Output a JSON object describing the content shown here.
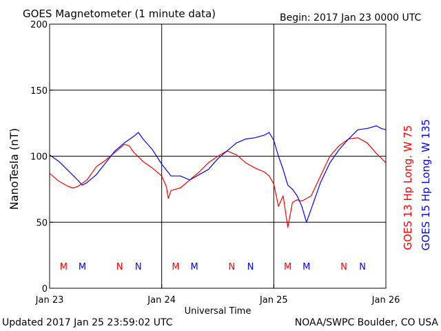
{
  "chart_data": {
    "type": "line",
    "title": "GOES Magnetometer (1 minute data)",
    "begin_label": "Begin:  2017 Jan 23 0000 UTC",
    "xlabel": "Universal Time",
    "ylabel": "NanoTesla (nT)",
    "xlim": [
      0,
      72
    ],
    "x_unit": "hours since Jan 23 0000 UTC",
    "ylim": [
      0,
      200
    ],
    "y_ticks": [
      0,
      50,
      100,
      150,
      200
    ],
    "x_ticks": [
      {
        "x": 0,
        "label": "Jan 23"
      },
      {
        "x": 24,
        "label": "Jan 24"
      },
      {
        "x": 48,
        "label": "Jan 25"
      },
      {
        "x": 72,
        "label": "Jan 26"
      }
    ],
    "grid": true,
    "footer_left": "Updated 2017 Jan 25 23:59:02 UTC",
    "footer_right": "NOAA/SWPC Boulder, CO USA",
    "series": [
      {
        "name": "GOES 13 Hp  Long. W 75",
        "color": "#ff0000",
        "x": [
          0,
          2,
          4,
          5,
          6,
          8,
          10,
          12,
          14,
          16,
          17,
          18,
          20,
          22,
          24,
          25,
          25.4,
          26,
          28,
          30,
          32,
          34,
          36,
          38,
          40,
          42,
          44,
          46,
          47,
          48,
          49,
          50,
          51,
          52,
          53,
          54,
          56,
          58,
          60,
          62,
          64,
          66,
          68,
          70,
          72
        ],
        "y": [
          87,
          81,
          77,
          76,
          77,
          82,
          92,
          97,
          103,
          109,
          108,
          103,
          96,
          91,
          85,
          77,
          68,
          74,
          76,
          82,
          88,
          95,
          100,
          104,
          101,
          95,
          91,
          88,
          85,
          79,
          62,
          70,
          46,
          65,
          67,
          66,
          70,
          85,
          100,
          108,
          113,
          114,
          110,
          102,
          95
        ],
        "markers": [
          {
            "x": 3,
            "label": "M"
          },
          {
            "x": 15,
            "label": "N"
          },
          {
            "x": 27,
            "label": "M"
          },
          {
            "x": 39,
            "label": "N"
          },
          {
            "x": 51,
            "label": "M"
          },
          {
            "x": 63,
            "label": "N"
          }
        ]
      },
      {
        "name": "GOES 15 Hp  Long. W 135",
        "color": "#0000ff",
        "x": [
          0,
          2,
          4,
          6,
          7,
          8,
          10,
          12,
          14,
          16,
          18,
          19,
          20,
          22,
          24,
          26,
          28,
          30,
          32,
          34,
          36,
          38,
          40,
          42,
          44,
          46,
          47,
          48,
          49,
          50,
          51,
          52,
          53,
          54,
          55,
          56,
          58,
          60,
          62,
          64,
          66,
          68,
          70,
          71,
          72
        ],
        "y": [
          101,
          96,
          89,
          82,
          78,
          80,
          86,
          95,
          104,
          110,
          115,
          118,
          113,
          105,
          94,
          85,
          85,
          82,
          86,
          90,
          98,
          104,
          110,
          113,
          114,
          116,
          118,
          112,
          100,
          90,
          78,
          75,
          70,
          62,
          50,
          60,
          80,
          95,
          105,
          113,
          120,
          121,
          123,
          121,
          120
        ],
        "markers": [
          {
            "x": 7,
            "label": "M"
          },
          {
            "x": 19,
            "label": "N"
          },
          {
            "x": 31,
            "label": "M"
          },
          {
            "x": 43,
            "label": "N"
          },
          {
            "x": 55,
            "label": "M"
          },
          {
            "x": 67,
            "label": "N"
          }
        ]
      }
    ]
  }
}
